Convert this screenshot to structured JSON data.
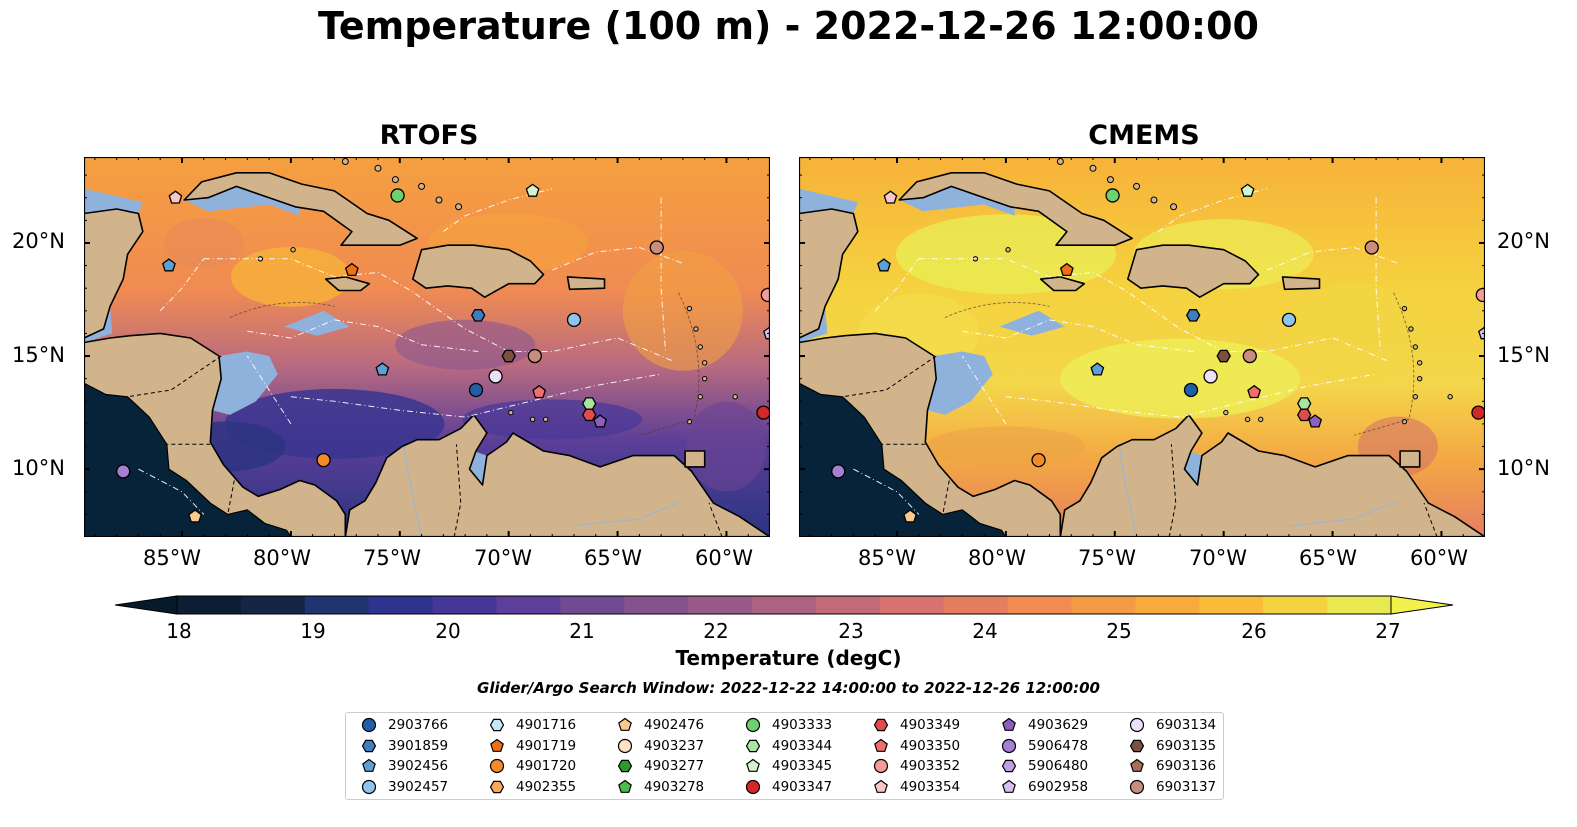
{
  "title": "Temperature (100 m) - 2022-12-26 12:00:00",
  "panels": [
    {
      "title": "RTOFS",
      "style": "warm-cool"
    },
    {
      "title": "CMEMS",
      "style": "warm"
    }
  ],
  "axes": {
    "lat_labels": [
      "20°N",
      "15°N",
      "10°N"
    ],
    "lon_labels": [
      "85°W",
      "80°W",
      "75°W",
      "70°W",
      "65°W",
      "60°W"
    ]
  },
  "colorbar": {
    "label": "Temperature (degC)",
    "ticks": [
      "18",
      "19",
      "20",
      "21",
      "22",
      "23",
      "24",
      "25",
      "26",
      "27"
    ],
    "vmin": 17.5,
    "vmax": 27.5,
    "colors": [
      "#0b1e33",
      "#152545",
      "#1f3470",
      "#2e338e",
      "#45379a",
      "#5c3f99",
      "#714a93",
      "#85528d",
      "#985a88",
      "#ad6282",
      "#c16a7a",
      "#d6736f",
      "#e57e61",
      "#f08b52",
      "#f59a45",
      "#f8aa3d",
      "#f9bd3a",
      "#f5d23f",
      "#e8e84f"
    ]
  },
  "search_window": "Glider/Argo Search Window: 2022-12-22 14:00:00 to 2022-12-26 12:00:00",
  "legend": [
    {
      "id": "2903766",
      "marker": "circle",
      "color": "#1f5fa8"
    },
    {
      "id": "3901859",
      "marker": "hexagon",
      "color": "#3d7dc0"
    },
    {
      "id": "3902456",
      "marker": "pentagon",
      "color": "#5ca0d8"
    },
    {
      "id": "3902457",
      "marker": "circle",
      "color": "#8ec4ee"
    },
    {
      "id": "4901716",
      "marker": "hexagon",
      "color": "#c6e6fb"
    },
    {
      "id": "4901719",
      "marker": "pentagon",
      "color": "#ef6f14"
    },
    {
      "id": "4901720",
      "marker": "circle",
      "color": "#f58a2b"
    },
    {
      "id": "4902355",
      "marker": "hexagon",
      "color": "#f9a85c"
    },
    {
      "id": "4902476",
      "marker": "pentagon",
      "color": "#fbc98e"
    },
    {
      "id": "4903237",
      "marker": "circle",
      "color": "#fde2c4"
    },
    {
      "id": "4903277",
      "marker": "hexagon",
      "color": "#2b9a2b"
    },
    {
      "id": "4903278",
      "marker": "pentagon",
      "color": "#4cbd4c"
    },
    {
      "id": "4903333",
      "marker": "circle",
      "color": "#6fd06f"
    },
    {
      "id": "4903344",
      "marker": "hexagon",
      "color": "#a7e6a0"
    },
    {
      "id": "4903345",
      "marker": "pentagon",
      "color": "#d2f4cc"
    },
    {
      "id": "4903347",
      "marker": "circle",
      "color": "#d62728"
    },
    {
      "id": "4903349",
      "marker": "hexagon",
      "color": "#e24b4b"
    },
    {
      "id": "4903350",
      "marker": "pentagon",
      "color": "#ef6f6f"
    },
    {
      "id": "4903352",
      "marker": "circle",
      "color": "#f49a9a"
    },
    {
      "id": "4903354",
      "marker": "pentagon",
      "color": "#fac6c6"
    },
    {
      "id": "4903629",
      "marker": "pentagon",
      "color": "#8d5fbf"
    },
    {
      "id": "5906478",
      "marker": "circle",
      "color": "#a57fd2"
    },
    {
      "id": "5906480",
      "marker": "hexagon",
      "color": "#bf9fe2"
    },
    {
      "id": "6902958",
      "marker": "pentagon",
      "color": "#d6c0f0"
    },
    {
      "id": "6903134",
      "marker": "circle",
      "color": "#ecdff8"
    },
    {
      "id": "6903135",
      "marker": "hexagon",
      "color": "#7b5140"
    },
    {
      "id": "6903136",
      "marker": "pentagon",
      "color": "#a66e5a"
    },
    {
      "id": "6903137",
      "marker": "circle",
      "color": "#c98d80"
    }
  ],
  "floats_on_map": [
    {
      "id": "4903354",
      "lon": -85.3,
      "lat": 22.0
    },
    {
      "id": "3902456",
      "lon": -85.6,
      "lat": 19.0
    },
    {
      "id": "4903333",
      "lon": -75.1,
      "lat": 22.1
    },
    {
      "id": "4903345",
      "lon": -68.9,
      "lat": 22.3
    },
    {
      "id": "6903137",
      "lon": -63.2,
      "lat": 19.8
    },
    {
      "id": "4901719",
      "lon": -77.2,
      "lat": 18.8
    },
    {
      "id": "4903352",
      "lon": -58.1,
      "lat": 17.7
    },
    {
      "id": "3901859",
      "lon": -71.4,
      "lat": 16.8
    },
    {
      "id": "3902457",
      "lon": -67.0,
      "lat": 16.6
    },
    {
      "id": "6902958",
      "lon": -58.0,
      "lat": 16.0
    },
    {
      "id": "3902456",
      "lon": -75.8,
      "lat": 14.4
    },
    {
      "id": "6903135",
      "lon": -70.0,
      "lat": 15.0
    },
    {
      "id": "6903137",
      "lon": -68.8,
      "lat": 15.0
    },
    {
      "id": "6903134",
      "lon": -70.6,
      "lat": 14.1
    },
    {
      "id": "2903766",
      "lon": -71.5,
      "lat": 13.5
    },
    {
      "id": "4903350",
      "lon": -68.6,
      "lat": 13.4
    },
    {
      "id": "4903344",
      "lon": -66.3,
      "lat": 12.9
    },
    {
      "id": "4903349",
      "lon": -66.3,
      "lat": 12.4
    },
    {
      "id": "4903629",
      "lon": -65.8,
      "lat": 12.1
    },
    {
      "id": "4903347",
      "lon": -58.3,
      "lat": 12.5
    },
    {
      "id": "4901720",
      "lon": -78.5,
      "lat": 10.4
    },
    {
      "id": "5906478",
      "lon": -87.7,
      "lat": 9.9
    },
    {
      "id": "4902476",
      "lon": -84.4,
      "lat": 7.9
    }
  ]
}
